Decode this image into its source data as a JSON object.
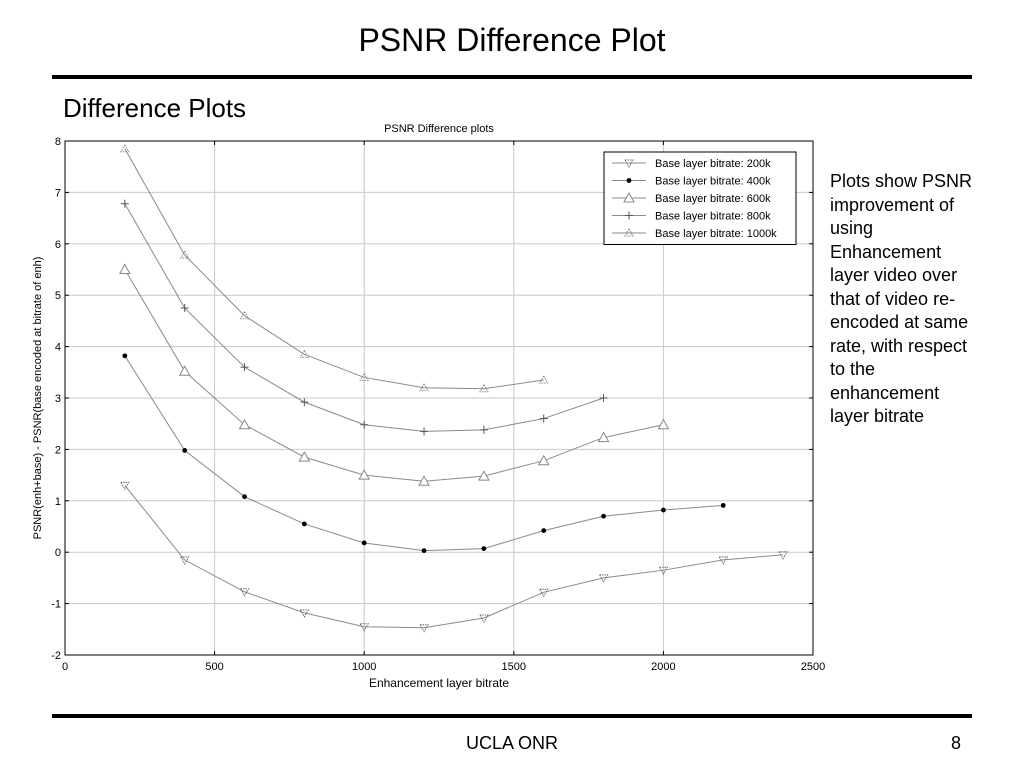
{
  "slide": {
    "title": "PSNR Difference Plot",
    "subtitle": "Difference Plots",
    "description": "Plots show PSNR improvement of using Enhancement layer video over that of video re-encoded at same rate, with respect to the enhancement layer bitrate",
    "footer": "UCLA ONR",
    "page_number": "8"
  },
  "chart_data": {
    "type": "line",
    "title": "PSNR Difference plots",
    "xlabel": "Enhancement layer bitrate",
    "ylabel": "PSNR(enh+base) - PSNR(base encoded at bitrate of enh)",
    "xlim": [
      0,
      2500
    ],
    "ylim": [
      -2,
      8
    ],
    "xticks": [
      0,
      500,
      1000,
      1500,
      2000,
      2500
    ],
    "yticks": [
      -2,
      -1,
      0,
      1,
      2,
      3,
      4,
      5,
      6,
      7,
      8
    ],
    "grid": true,
    "legend_position": "top-right",
    "series": [
      {
        "name": "Base layer bitrate: 200k",
        "marker": "tri-down",
        "x": [
          200,
          400,
          600,
          800,
          1000,
          1200,
          1400,
          1600,
          1800,
          2000,
          2200,
          2400
        ],
        "values": [
          1.3,
          -0.15,
          -0.77,
          -1.18,
          -1.45,
          -1.47,
          -1.28,
          -0.78,
          -0.5,
          -0.35,
          -0.15,
          -0.05
        ]
      },
      {
        "name": "Base layer bitrate: 400k",
        "marker": "dot",
        "x": [
          200,
          400,
          600,
          800,
          1000,
          1200,
          1400,
          1600,
          1800,
          2000,
          2200
        ],
        "values": [
          3.82,
          1.98,
          1.08,
          0.55,
          0.18,
          0.03,
          0.07,
          0.42,
          0.7,
          0.82,
          0.91
        ]
      },
      {
        "name": "Base layer bitrate: 600k",
        "marker": "triangle",
        "x": [
          200,
          400,
          600,
          800,
          1000,
          1200,
          1400,
          1600,
          1800,
          2000
        ],
        "values": [
          5.5,
          3.52,
          2.48,
          1.85,
          1.5,
          1.38,
          1.48,
          1.78,
          2.23,
          2.48
        ]
      },
      {
        "name": "Base layer bitrate: 800k",
        "marker": "plus",
        "x": [
          200,
          400,
          600,
          800,
          1000,
          1200,
          1400,
          1600,
          1800
        ],
        "values": [
          6.78,
          4.75,
          3.6,
          2.92,
          2.48,
          2.35,
          2.38,
          2.6,
          3.0
        ]
      },
      {
        "name": "Base layer bitrate: 1000k",
        "marker": "tri-up",
        "x": [
          200,
          400,
          600,
          800,
          1000,
          1200,
          1400,
          1600
        ],
        "values": [
          7.85,
          5.78,
          4.6,
          3.85,
          3.4,
          3.2,
          3.18,
          3.35
        ]
      }
    ]
  }
}
